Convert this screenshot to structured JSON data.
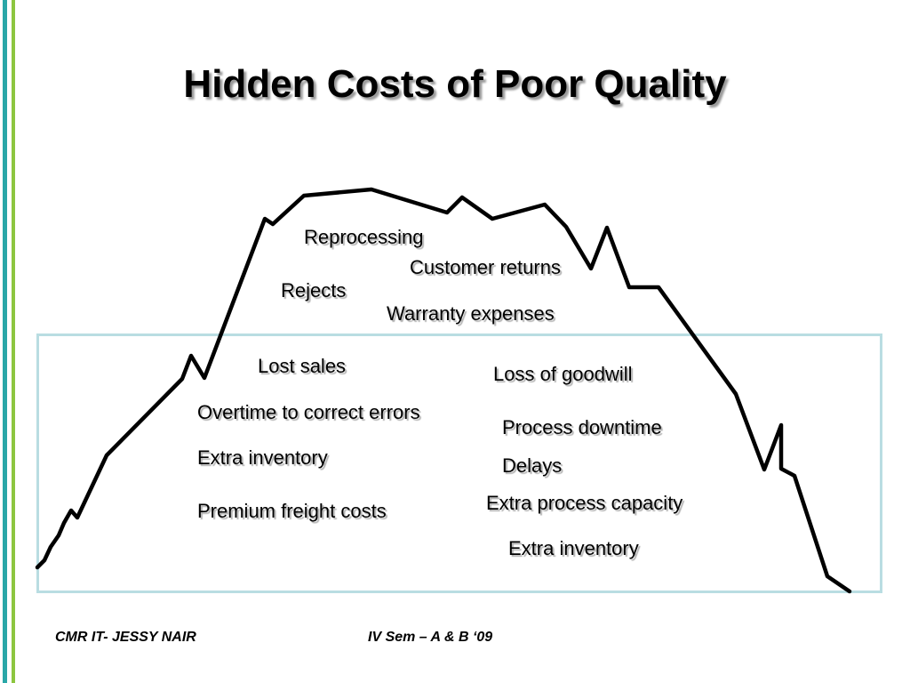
{
  "slide": {
    "title": "Hidden Costs of Poor Quality",
    "labels": {
      "reprocessing": "Reprocessing",
      "customer_returns": "Customer returns",
      "rejects": "Rejects",
      "warranty_expenses": "Warranty expenses",
      "lost_sales": "Lost sales",
      "loss_of_goodwill": "Loss of goodwill",
      "overtime": "Overtime to correct errors",
      "process_downtime": "Process downtime",
      "extra_inventory_left": "Extra inventory",
      "delays": "Delays",
      "extra_process_capacity": "Extra process capacity",
      "premium_freight": "Premium freight costs",
      "extra_inventory_right": "Extra inventory"
    },
    "footer": {
      "left": "CMR IT- JESSY NAIR",
      "right": "IV Sem – A & B ‘09"
    },
    "colors": {
      "accent_teal": "#2aa7a8",
      "accent_green": "#8dc63f",
      "box_border": "#b9dde2"
    }
  }
}
